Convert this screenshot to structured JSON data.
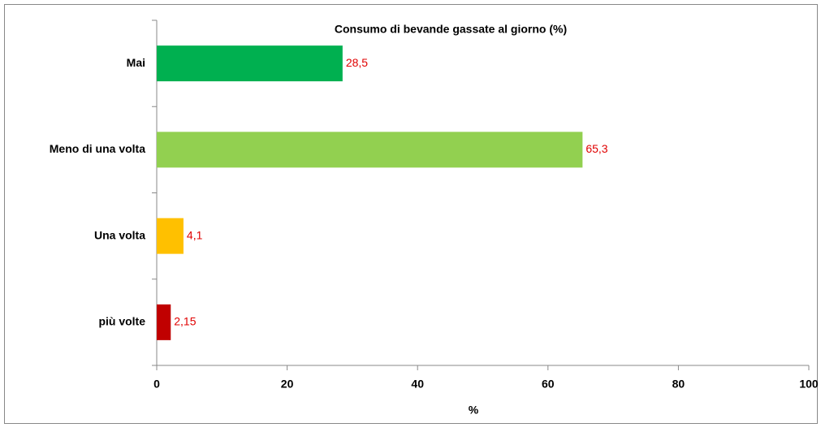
{
  "chart_data": {
    "type": "barh",
    "title": "Consumo di bevande gassate al giorno (%)",
    "categories": [
      "Mai",
      "Meno di una volta",
      "Una volta",
      "più volte"
    ],
    "values": [
      28.5,
      65.3,
      4.1,
      2.15
    ],
    "value_labels": [
      "28,5",
      "65,3",
      "4,1",
      "2,15"
    ],
    "colors": [
      "#00b050",
      "#92d050",
      "#ffc000",
      "#c00000"
    ],
    "xlabel": "%",
    "xlim": [
      0,
      100
    ],
    "xticks": [
      0,
      20,
      40,
      60,
      80,
      100
    ],
    "grid": false
  }
}
